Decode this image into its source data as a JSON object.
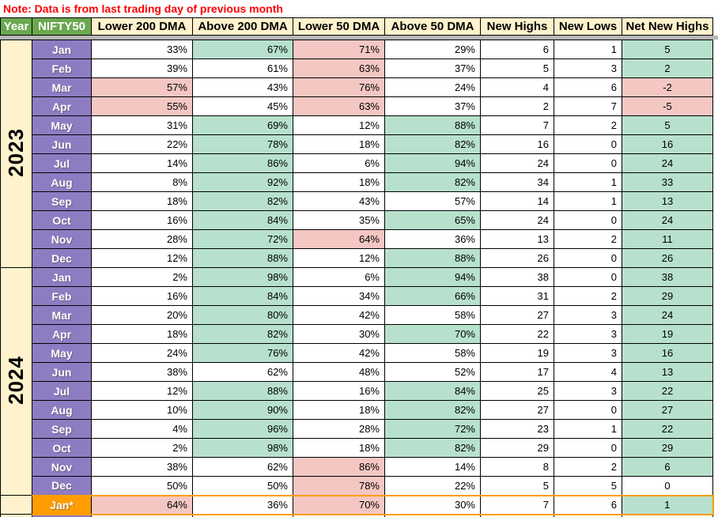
{
  "note": "Note: Data is from last trading day of previous month",
  "colors": {
    "header_green": "#6aa84f",
    "header_cream": "#fff2cc",
    "month_purple": "#8e7cc3",
    "cell_green": "#b7e1cd",
    "cell_pink": "#f4c7c3",
    "highlight_orange": "#ff9d00",
    "note_red": "#ff0000",
    "divider_gray": "#b7b7b7"
  },
  "table": {
    "headers": [
      "Year",
      "NIFTY50",
      "Lower 200 DMA",
      "Above 200 DMA",
      "Lower 50 DMA",
      "Above 50 DMA",
      "New Highs",
      "New Lows",
      "Net New Highs"
    ],
    "columns": [
      "lower-200-dma",
      "above-200-dma",
      "lower-50-dma",
      "above-50-dma",
      "new-highs",
      "new-lows",
      "net-new-highs"
    ],
    "rows": [
      {
        "year": "2023",
        "year_span": 12,
        "month": "Jan",
        "values": [
          "33%",
          "67%",
          "71%",
          "29%",
          "6",
          "1",
          "5"
        ],
        "fills": [
          "w",
          "g",
          "p",
          "w",
          "w",
          "w",
          "g"
        ]
      },
      {
        "month": "Feb",
        "values": [
          "39%",
          "61%",
          "63%",
          "37%",
          "5",
          "3",
          "2"
        ],
        "fills": [
          "w",
          "w",
          "p",
          "w",
          "w",
          "w",
          "g"
        ]
      },
      {
        "month": "Mar",
        "values": [
          "57%",
          "43%",
          "76%",
          "24%",
          "4",
          "6",
          "-2"
        ],
        "fills": [
          "p",
          "w",
          "p",
          "w",
          "w",
          "w",
          "p"
        ]
      },
      {
        "month": "Apr",
        "values": [
          "55%",
          "45%",
          "63%",
          "37%",
          "2",
          "7",
          "-5"
        ],
        "fills": [
          "p",
          "w",
          "p",
          "w",
          "w",
          "w",
          "p"
        ]
      },
      {
        "month": "May",
        "values": [
          "31%",
          "69%",
          "12%",
          "88%",
          "7",
          "2",
          "5"
        ],
        "fills": [
          "w",
          "g",
          "w",
          "g",
          "w",
          "w",
          "g"
        ]
      },
      {
        "month": "Jun",
        "values": [
          "22%",
          "78%",
          "18%",
          "82%",
          "16",
          "0",
          "16"
        ],
        "fills": [
          "w",
          "g",
          "w",
          "g",
          "w",
          "w",
          "g"
        ]
      },
      {
        "month": "Jul",
        "values": [
          "14%",
          "86%",
          "6%",
          "94%",
          "24",
          "0",
          "24"
        ],
        "fills": [
          "w",
          "g",
          "w",
          "g",
          "w",
          "w",
          "g"
        ]
      },
      {
        "month": "Aug",
        "values": [
          "8%",
          "92%",
          "18%",
          "82%",
          "34",
          "1",
          "33"
        ],
        "fills": [
          "w",
          "g",
          "w",
          "g",
          "w",
          "w",
          "g"
        ]
      },
      {
        "month": "Sep",
        "values": [
          "18%",
          "82%",
          "43%",
          "57%",
          "14",
          "1",
          "13"
        ],
        "fills": [
          "w",
          "g",
          "w",
          "w",
          "w",
          "w",
          "g"
        ]
      },
      {
        "month": "Oct",
        "values": [
          "16%",
          "84%",
          "35%",
          "65%",
          "24",
          "0",
          "24"
        ],
        "fills": [
          "w",
          "g",
          "w",
          "g",
          "w",
          "w",
          "g"
        ]
      },
      {
        "month": "Nov",
        "values": [
          "28%",
          "72%",
          "64%",
          "36%",
          "13",
          "2",
          "11"
        ],
        "fills": [
          "w",
          "g",
          "p",
          "w",
          "w",
          "w",
          "g"
        ]
      },
      {
        "month": "Dec",
        "values": [
          "12%",
          "88%",
          "12%",
          "88%",
          "26",
          "0",
          "26"
        ],
        "fills": [
          "w",
          "g",
          "w",
          "g",
          "w",
          "w",
          "g"
        ]
      },
      {
        "year": "2024",
        "year_span": 12,
        "month": "Jan",
        "values": [
          "2%",
          "98%",
          "6%",
          "94%",
          "38",
          "0",
          "38"
        ],
        "fills": [
          "w",
          "g",
          "w",
          "g",
          "w",
          "w",
          "g"
        ]
      },
      {
        "month": "Feb",
        "values": [
          "16%",
          "84%",
          "34%",
          "66%",
          "31",
          "2",
          "29"
        ],
        "fills": [
          "w",
          "g",
          "w",
          "g",
          "w",
          "w",
          "g"
        ]
      },
      {
        "month": "Mar",
        "values": [
          "20%",
          "80%",
          "42%",
          "58%",
          "27",
          "3",
          "24"
        ],
        "fills": [
          "w",
          "g",
          "w",
          "w",
          "w",
          "w",
          "g"
        ]
      },
      {
        "month": "Apr",
        "values": [
          "18%",
          "82%",
          "30%",
          "70%",
          "22",
          "3",
          "19"
        ],
        "fills": [
          "w",
          "g",
          "w",
          "g",
          "w",
          "w",
          "g"
        ]
      },
      {
        "month": "May",
        "values": [
          "24%",
          "76%",
          "42%",
          "58%",
          "19",
          "3",
          "16"
        ],
        "fills": [
          "w",
          "g",
          "w",
          "w",
          "w",
          "w",
          "g"
        ]
      },
      {
        "month": "Jun",
        "values": [
          "38%",
          "62%",
          "48%",
          "52%",
          "17",
          "4",
          "13"
        ],
        "fills": [
          "w",
          "w",
          "w",
          "w",
          "w",
          "w",
          "g"
        ]
      },
      {
        "month": "Jul",
        "values": [
          "12%",
          "88%",
          "16%",
          "84%",
          "25",
          "3",
          "22"
        ],
        "fills": [
          "w",
          "g",
          "w",
          "g",
          "w",
          "w",
          "g"
        ]
      },
      {
        "month": "Aug",
        "values": [
          "10%",
          "90%",
          "18%",
          "82%",
          "27",
          "0",
          "27"
        ],
        "fills": [
          "w",
          "g",
          "w",
          "g",
          "w",
          "w",
          "g"
        ]
      },
      {
        "month": "Sep",
        "values": [
          "4%",
          "96%",
          "28%",
          "72%",
          "23",
          "1",
          "22"
        ],
        "fills": [
          "w",
          "g",
          "w",
          "g",
          "w",
          "w",
          "g"
        ]
      },
      {
        "month": "Oct",
        "values": [
          "2%",
          "98%",
          "18%",
          "82%",
          "29",
          "0",
          "29"
        ],
        "fills": [
          "w",
          "g",
          "w",
          "g",
          "w",
          "w",
          "g"
        ]
      },
      {
        "month": "Nov",
        "values": [
          "38%",
          "62%",
          "86%",
          "14%",
          "8",
          "2",
          "6"
        ],
        "fills": [
          "w",
          "w",
          "p",
          "w",
          "w",
          "w",
          "g"
        ]
      },
      {
        "month": "Dec",
        "values": [
          "50%",
          "50%",
          "78%",
          "22%",
          "5",
          "5",
          "0"
        ],
        "fills": [
          "w",
          "w",
          "p",
          "w",
          "w",
          "w",
          "w"
        ]
      },
      {
        "year": "",
        "year_span": 1,
        "month": "Jan*",
        "values": [
          "64%",
          "36%",
          "70%",
          "30%",
          "7",
          "6",
          "1"
        ],
        "fills": [
          "p",
          "w",
          "p",
          "w",
          "w",
          "w",
          "g"
        ],
        "highlight": true
      }
    ]
  }
}
